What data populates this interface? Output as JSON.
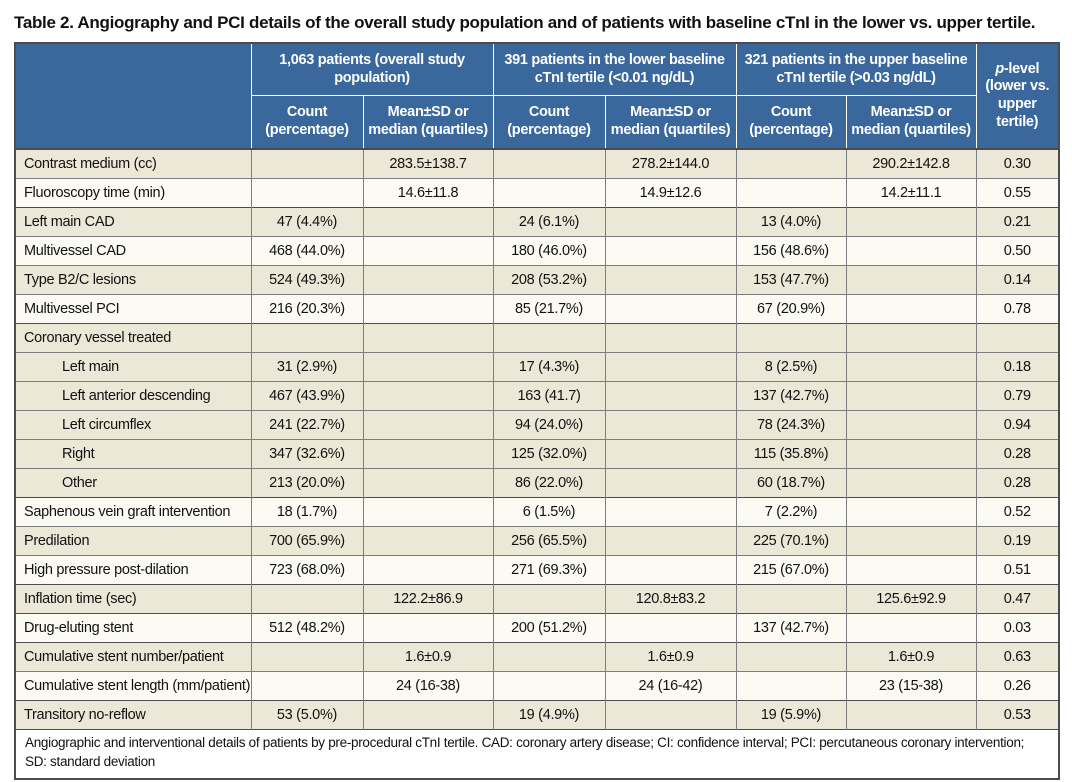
{
  "title": "Table 2. Angiography and PCI details of the overall study population and of patients with baseline cTnI in the lower vs. upper tertile.",
  "colors": {
    "header_blue": "#3a689c",
    "row_cream": "#ece8d7",
    "row_white": "#fbfaf3",
    "border_dark": "#4c4c4e",
    "border_gray": "#7d7d7f"
  },
  "table": {
    "groups": [
      {
        "label": "1,063 patients (overall study population)"
      },
      {
        "label": "391 patients in the lower baseline cTnI tertile (<0.01 ng/dL)"
      },
      {
        "label": "321 patients in the upper baseline cTnI tertile (>0.03 ng/dL)"
      }
    ],
    "subheaders": {
      "count": "Count (percentage)",
      "mean": "Mean±SD or median (quartiles)"
    },
    "p_header": {
      "italic": "p",
      "rest": "-level (lower vs. upper tertile)"
    },
    "rows": [
      {
        "label": "Contrast medium (cc)",
        "indent": false,
        "shade": "cream",
        "thick_top": true,
        "cells": [
          "",
          "283.5±138.7",
          "",
          "278.2±144.0",
          "",
          "290.2±142.8",
          "0.30"
        ]
      },
      {
        "label": "Fluoroscopy time (min)",
        "indent": false,
        "shade": "white",
        "thick_top": false,
        "cells": [
          "",
          "14.6±11.8",
          "",
          "14.9±12.6",
          "",
          "14.2±11.1",
          "0.55"
        ]
      },
      {
        "label": "Left main CAD",
        "indent": false,
        "shade": "cream",
        "thick_top": true,
        "cells": [
          "47 (4.4%)",
          "",
          "24 (6.1%)",
          "",
          "13 (4.0%)",
          "",
          "0.21"
        ]
      },
      {
        "label": "Multivessel CAD",
        "indent": false,
        "shade": "white",
        "thick_top": false,
        "cells": [
          "468 (44.0%)",
          "",
          "180 (46.0%)",
          "",
          "156 (48.6%)",
          "",
          "0.50"
        ]
      },
      {
        "label": "Type B2/C lesions",
        "indent": false,
        "shade": "cream",
        "thick_top": false,
        "cells": [
          "524 (49.3%)",
          "",
          "208 (53.2%)",
          "",
          "153 (47.7%)",
          "",
          "0.14"
        ]
      },
      {
        "label": "Multivessel PCI",
        "indent": false,
        "shade": "white",
        "thick_top": false,
        "cells": [
          "216 (20.3%)",
          "",
          "85 (21.7%)",
          "",
          "67 (20.9%)",
          "",
          "0.78"
        ]
      },
      {
        "label": "Coronary vessel treated",
        "indent": false,
        "shade": "cream",
        "thick_top": true,
        "cells": [
          "",
          "",
          "",
          "",
          "",
          "",
          ""
        ]
      },
      {
        "label": "Left main",
        "indent": true,
        "shade": "cream",
        "thick_top": false,
        "cells": [
          "31 (2.9%)",
          "",
          "17 (4.3%)",
          "",
          "8 (2.5%)",
          "",
          "0.18"
        ]
      },
      {
        "label": "Left anterior descending",
        "indent": true,
        "shade": "cream",
        "thick_top": false,
        "cells": [
          "467 (43.9%)",
          "",
          "163 (41.7)",
          "",
          "137 (42.7%)",
          "",
          "0.79"
        ]
      },
      {
        "label": "Left circumflex",
        "indent": true,
        "shade": "cream",
        "thick_top": false,
        "cells": [
          "241 (22.7%)",
          "",
          "94 (24.0%)",
          "",
          "78 (24.3%)",
          "",
          "0.94"
        ]
      },
      {
        "label": "Right",
        "indent": true,
        "shade": "cream",
        "thick_top": false,
        "cells": [
          "347 (32.6%)",
          "",
          "125 (32.0%)",
          "",
          "115 (35.8%)",
          "",
          "0.28"
        ]
      },
      {
        "label": "Other",
        "indent": true,
        "shade": "cream",
        "thick_top": false,
        "cells": [
          "213 (20.0%)",
          "",
          "86 (22.0%)",
          "",
          "60 (18.7%)",
          "",
          "0.28"
        ]
      },
      {
        "label": "Saphenous vein graft intervention",
        "indent": false,
        "shade": "white",
        "thick_top": true,
        "cells": [
          "18 (1.7%)",
          "",
          "6 (1.5%)",
          "",
          "7 (2.2%)",
          "",
          "0.52"
        ]
      },
      {
        "label": "Predilation",
        "indent": false,
        "shade": "cream",
        "thick_top": false,
        "cells": [
          "700 (65.9%)",
          "",
          "256 (65.5%)",
          "",
          "225 (70.1%)",
          "",
          "0.19"
        ]
      },
      {
        "label": "High pressure post-dilation",
        "indent": false,
        "shade": "white",
        "thick_top": false,
        "cells": [
          "723 (68.0%)",
          "",
          "271 (69.3%)",
          "",
          "215 (67.0%)",
          "",
          "0.51"
        ]
      },
      {
        "label": "Inflation time (sec)",
        "indent": false,
        "shade": "cream",
        "thick_top": true,
        "cells": [
          "",
          "122.2±86.9",
          "",
          "120.8±83.2",
          "",
          "125.6±92.9",
          "0.47"
        ]
      },
      {
        "label": "Drug-eluting stent",
        "indent": false,
        "shade": "white",
        "thick_top": true,
        "cells": [
          "512 (48.2%)",
          "",
          "200 (51.2%)",
          "",
          "137 (42.7%)",
          "",
          "0.03"
        ]
      },
      {
        "label": "Cumulative stent number/patient",
        "indent": false,
        "shade": "cream",
        "thick_top": true,
        "cells": [
          "",
          "1.6±0.9",
          "",
          "1.6±0.9",
          "",
          "1.6±0.9",
          "0.63"
        ]
      },
      {
        "label": "Cumulative stent length (mm/patient)",
        "indent": false,
        "shade": "white",
        "thick_top": false,
        "cells": [
          "",
          "24 (16-38)",
          "",
          "24 (16-42)",
          "",
          "23 (15-38)",
          "0.26"
        ]
      },
      {
        "label": "Transitory no-reflow",
        "indent": false,
        "shade": "cream",
        "thick_top": true,
        "cells": [
          "53 (5.0%)",
          "",
          "19 (4.9%)",
          "",
          "19 (5.9%)",
          "",
          "0.53"
        ]
      }
    ],
    "footnote": "Angiographic and interventional details of patients by pre-procedural cTnI tertile. CAD: coronary artery disease; CI: confidence interval; PCI: percutaneous coronary intervention; SD: standard deviation"
  }
}
